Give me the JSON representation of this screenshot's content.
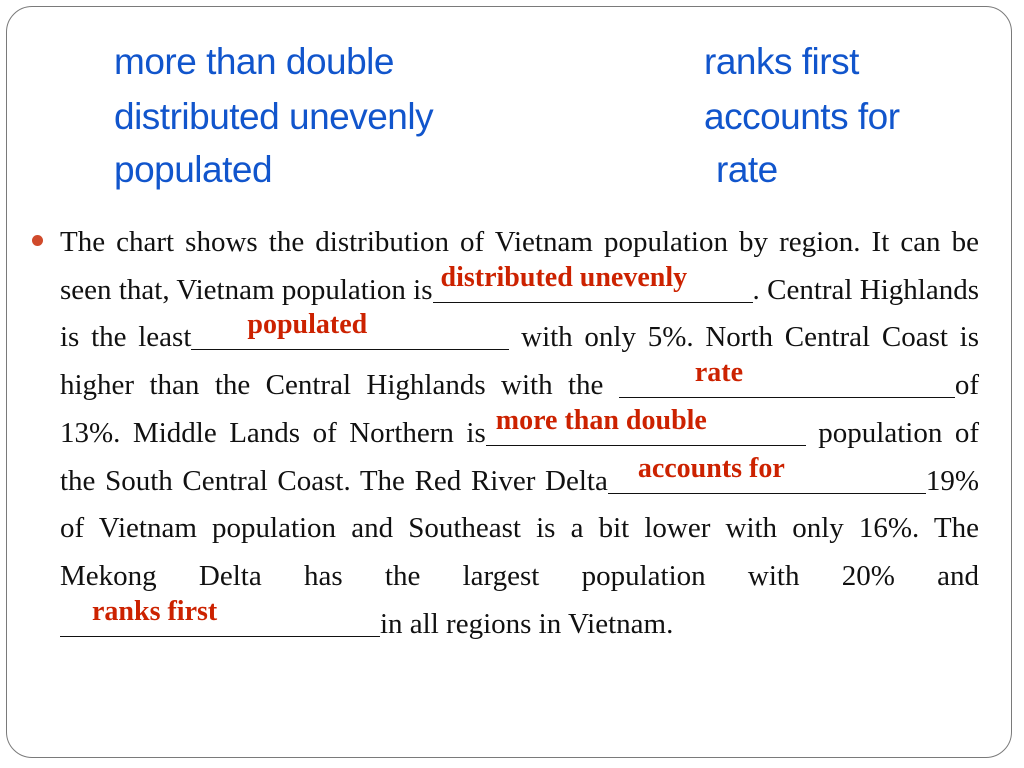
{
  "word_bank": {
    "col1": [
      "more than double",
      "distributed unevenly",
      "populated"
    ],
    "col2": [
      "ranks first",
      "accounts for",
      "rate"
    ]
  },
  "passage": {
    "t0": "The chart shows the distribution of Vietnam population by region. It can be seen that, Vietnam population is",
    "t1": ". Central Highlands is the least",
    "t2": " with only 5%. North Central Coast is higher than the Central Highlands with the ",
    "t3": "of 13%. Middle Lands of Northern is",
    "t4": " population of the South Central Coast. The Red River Delta",
    "t5": "19% of Vietnam population and Southeast is a bit lower with only 16%. The Mekong Delta has the largest population with 20% and ",
    "t6": "in all regions in Vietnam."
  },
  "answers": [
    "distributed unevenly",
    "populated",
    "rate",
    "more than double",
    "accounts for",
    "ranks first"
  ],
  "colors": {
    "word_bank": "#1155cc",
    "answers": "#cc2200",
    "bullet": "#d04a2b",
    "frame": "#7a7a7a"
  }
}
